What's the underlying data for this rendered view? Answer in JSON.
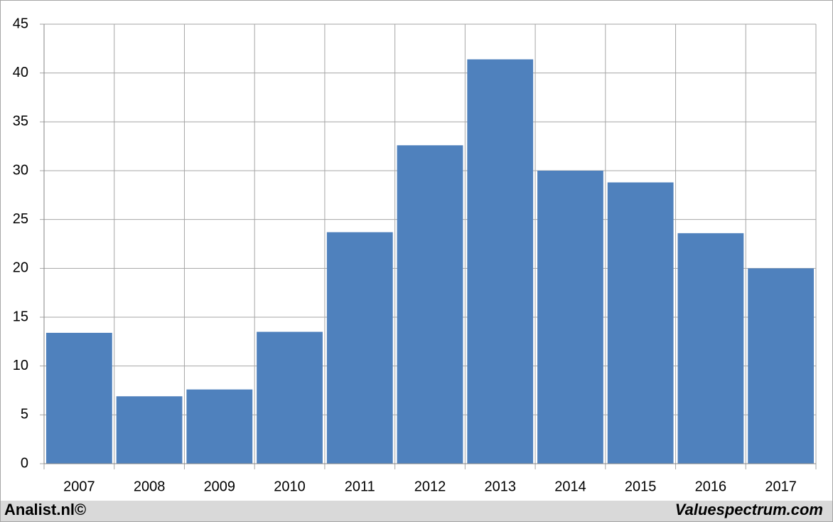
{
  "chart_data": {
    "type": "bar",
    "categories": [
      "2007",
      "2008",
      "2009",
      "2010",
      "2011",
      "2012",
      "2013",
      "2014",
      "2015",
      "2016",
      "2017"
    ],
    "values": [
      13.4,
      6.9,
      7.6,
      13.5,
      23.7,
      32.6,
      41.4,
      30.0,
      28.8,
      23.6,
      20.0
    ],
    "color": "#4f81bd",
    "ylim": [
      0,
      45
    ],
    "yticks": [
      0,
      5,
      10,
      15,
      20,
      25,
      30,
      35,
      40,
      45
    ],
    "grid": true
  },
  "footer": {
    "left": "Analist.nl©",
    "right": "Valuespectrum.com"
  }
}
